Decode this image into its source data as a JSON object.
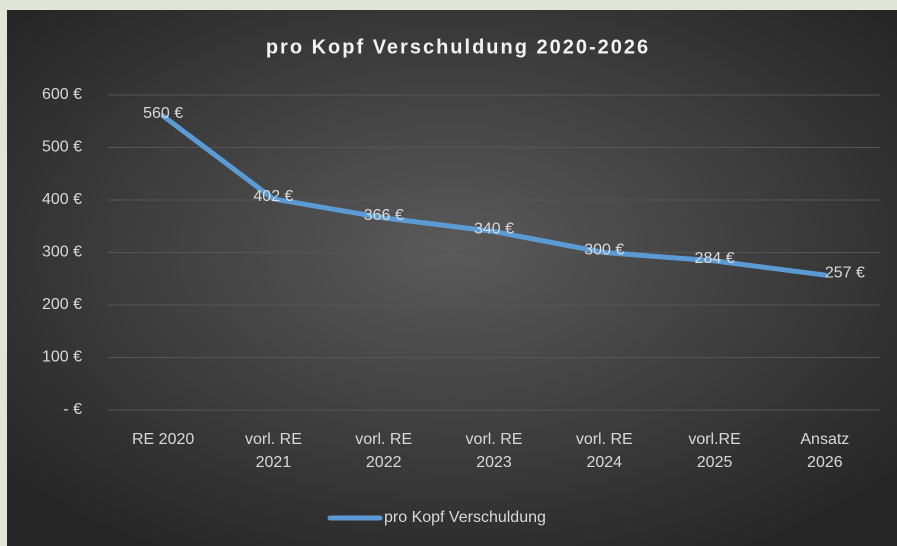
{
  "chart_data": {
    "type": "line",
    "title": "pro Kopf Verschuldung 2020-2026",
    "categories": [
      "RE 2020",
      "vorl. RE\n2021",
      "vorl. RE\n2022",
      "vorl. RE\n2023",
      "vorl. RE\n2024",
      "vorl.RE\n2025",
      "Ansatz\n2026"
    ],
    "series": [
      {
        "name": "pro Kopf Verschuldung",
        "color": "#5b9bd5",
        "values": [
          560,
          402,
          366,
          340,
          300,
          284,
          257
        ],
        "value_labels": [
          "560 €",
          "402 €",
          "366 €",
          "340 €",
          "300 €",
          "284 €",
          "257 €"
        ]
      }
    ],
    "ylim": [
      0,
      600
    ],
    "yticks": [
      {
        "value": 0,
        "label": "-  €"
      },
      {
        "value": 100,
        "label": "100 €"
      },
      {
        "value": 200,
        "label": "200 €"
      },
      {
        "value": 300,
        "label": "300 €"
      },
      {
        "value": 400,
        "label": "400 €"
      },
      {
        "value": 500,
        "label": "500 €"
      },
      {
        "value": 600,
        "label": "600 €"
      }
    ],
    "grid": true,
    "legend": "bottom"
  }
}
